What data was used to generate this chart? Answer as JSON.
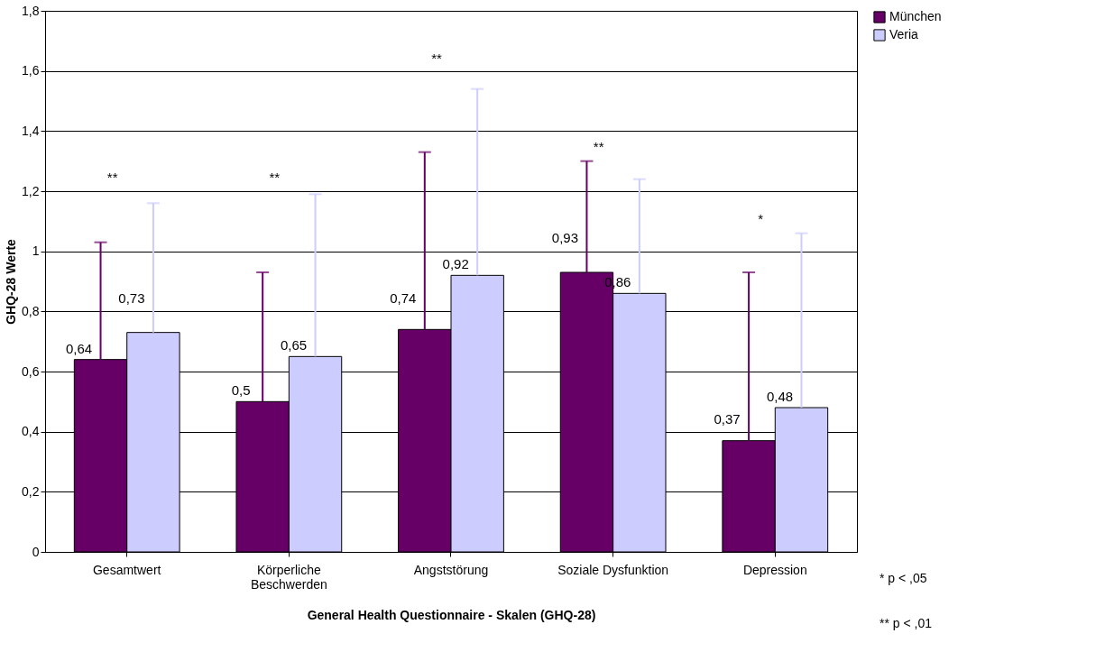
{
  "chart_data": {
    "type": "bar",
    "xlabel": "General Health Questionnaire - Skalen (GHQ-28)",
    "ylabel": "GHQ-28 Werte",
    "categories": [
      "Gesamtwert",
      "Körperliche Beschwerden",
      "Angststörung",
      "Soziale Dysfunktion",
      "Depression"
    ],
    "series": [
      {
        "name": "München",
        "color": "#660066",
        "values": [
          0.64,
          0.5,
          0.74,
          0.93,
          0.37
        ],
        "errors": [
          [
            0.64,
            1.03
          ],
          [
            0.5,
            0.93
          ],
          [
            0.74,
            1.33
          ],
          [
            0.93,
            1.3
          ],
          [
            0.37,
            0.93
          ]
        ],
        "value_labels": [
          "0,64",
          "0,5",
          "0,74",
          "0,93",
          "0,37"
        ]
      },
      {
        "name": "Veria",
        "color": "#ccccff",
        "values": [
          0.73,
          0.65,
          0.92,
          0.86,
          0.48
        ],
        "errors": [
          [
            0.73,
            1.16
          ],
          [
            0.65,
            1.19
          ],
          [
            0.92,
            1.54
          ],
          [
            0.86,
            1.24
          ],
          [
            0.48,
            1.06
          ]
        ],
        "value_labels": [
          "0,73",
          "0,65",
          "0,92",
          "0,86",
          "0,48"
        ]
      }
    ],
    "ylim": [
      0,
      1.8
    ],
    "yticks": [
      0,
      {
        "value": 0.2,
        "label": "0,2"
      },
      {
        "value": 0.4,
        "label": "0,4"
      },
      {
        "value": 0.6,
        "label": "0,6"
      },
      {
        "value": 0.8,
        "label": "0,8"
      },
      1,
      {
        "value": 1.2,
        "label": "1,2"
      },
      {
        "value": 1.4,
        "label": "1,4"
      },
      {
        "value": 1.6,
        "label": "1,6"
      },
      {
        "value": 1.8,
        "label": "1,8"
      }
    ],
    "grid": "y",
    "legend": "right",
    "annotations": [
      "**",
      "**",
      "**",
      "**",
      "*",
      "* p < ,05",
      "** p < ,01"
    ]
  }
}
